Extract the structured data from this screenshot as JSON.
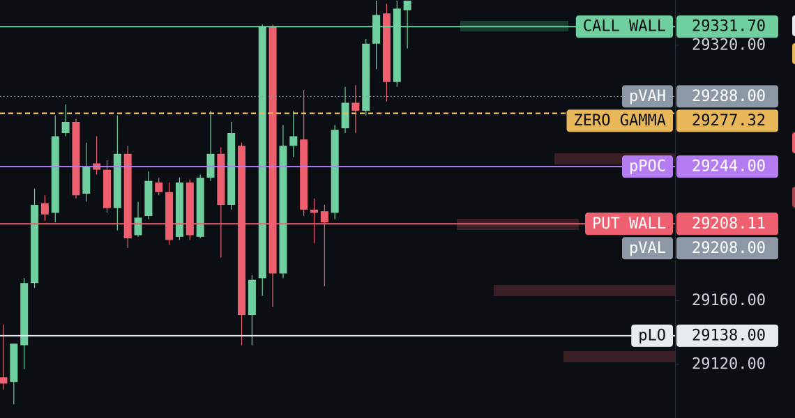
{
  "chart_data": {
    "type": "candlestick",
    "up_color": "#6fcf9f",
    "down_color": "#ee6070",
    "candles": {
      "open": [
        29112,
        29109,
        29132,
        29171,
        29221,
        29215,
        29265,
        29272,
        29227,
        29246,
        29242,
        29218,
        29252,
        29201,
        29213,
        29234,
        29228,
        29200,
        29234,
        29200,
        29237,
        29252,
        29220,
        29257,
        29151,
        29174,
        29332,
        29177,
        29257,
        29261,
        29217,
        29216,
        29215,
        29268,
        29284,
        29279,
        29321,
        29340,
        29297,
        29342
      ],
      "high": [
        29145,
        29133,
        29174,
        29230,
        29226,
        29276,
        29283,
        29274,
        29259,
        29263,
        29248,
        29276,
        29257,
        29222,
        29241,
        29237,
        29234,
        29237,
        29236,
        29239,
        29279,
        29256,
        29272,
        29259,
        29176,
        29333,
        29333,
        29270,
        29279,
        29292,
        29224,
        29220,
        29270,
        29294,
        29295,
        29324,
        29348,
        29346,
        29348,
        29348
      ],
      "low": [
        29104,
        29095,
        29117,
        29168,
        29210,
        29209,
        29263,
        29224,
        29222,
        29239,
        29215,
        29204,
        29193,
        29200,
        29211,
        29226,
        29195,
        29198,
        29198,
        29199,
        29235,
        29187,
        29217,
        29132,
        29132,
        29163,
        29156,
        29174,
        29250,
        29213,
        29196,
        29169,
        29211,
        29265,
        29265,
        29276,
        29305,
        29285,
        29294,
        29318
      ],
      "close": [
        29108,
        29133,
        29171,
        29220,
        29214,
        29263,
        29272,
        29226,
        29244,
        29242,
        29218,
        29252,
        29199,
        29212,
        29235,
        29228,
        29198,
        29234,
        29201,
        29237,
        29252,
        29220,
        29265,
        29151,
        29173,
        29332,
        29177,
        29257,
        29263,
        29217,
        29215,
        29209,
        29267,
        29284,
        29279,
        29321,
        29339,
        29297,
        29343,
        29348
      ]
    },
    "ylim": [
      29086.4,
      29348.4
    ],
    "yticks": [
      {
        "value": 29320,
        "label": "29320.00"
      },
      {
        "value": 29160,
        "label": "29160.00"
      },
      {
        "value": 29120,
        "label": "29120.00"
      }
    ],
    "levels": [
      {
        "name": "CALL WALL",
        "value": 29331.7,
        "value_label": "29331.70",
        "color": "#6fcf9f",
        "style": "solid"
      },
      {
        "name": "pVAH",
        "value": 29288,
        "value_label": "29288.00",
        "color": "#8c98a6",
        "style": "dotted"
      },
      {
        "name": "ZERO GAMMA",
        "value": 29277.32,
        "value_label": "29277.32",
        "color": "#e8b85a",
        "style": "dashed"
      },
      {
        "name": "pPOC",
        "value": 29244,
        "value_label": "29244.00",
        "color": "#b57cf2",
        "style": "solid"
      },
      {
        "name": "PUT WALL",
        "value": 29208.11,
        "value_label": "29208.11",
        "color": "#ee6070",
        "style": "solid"
      },
      {
        "name": "pVAL",
        "value": 29208,
        "value_label": "29208.00",
        "color": "#8c98a6",
        "style": "none"
      },
      {
        "name": "pLO",
        "value": 29138,
        "value_label": "29138.00",
        "color": "#e6ebf0",
        "style": "solid"
      }
    ]
  }
}
